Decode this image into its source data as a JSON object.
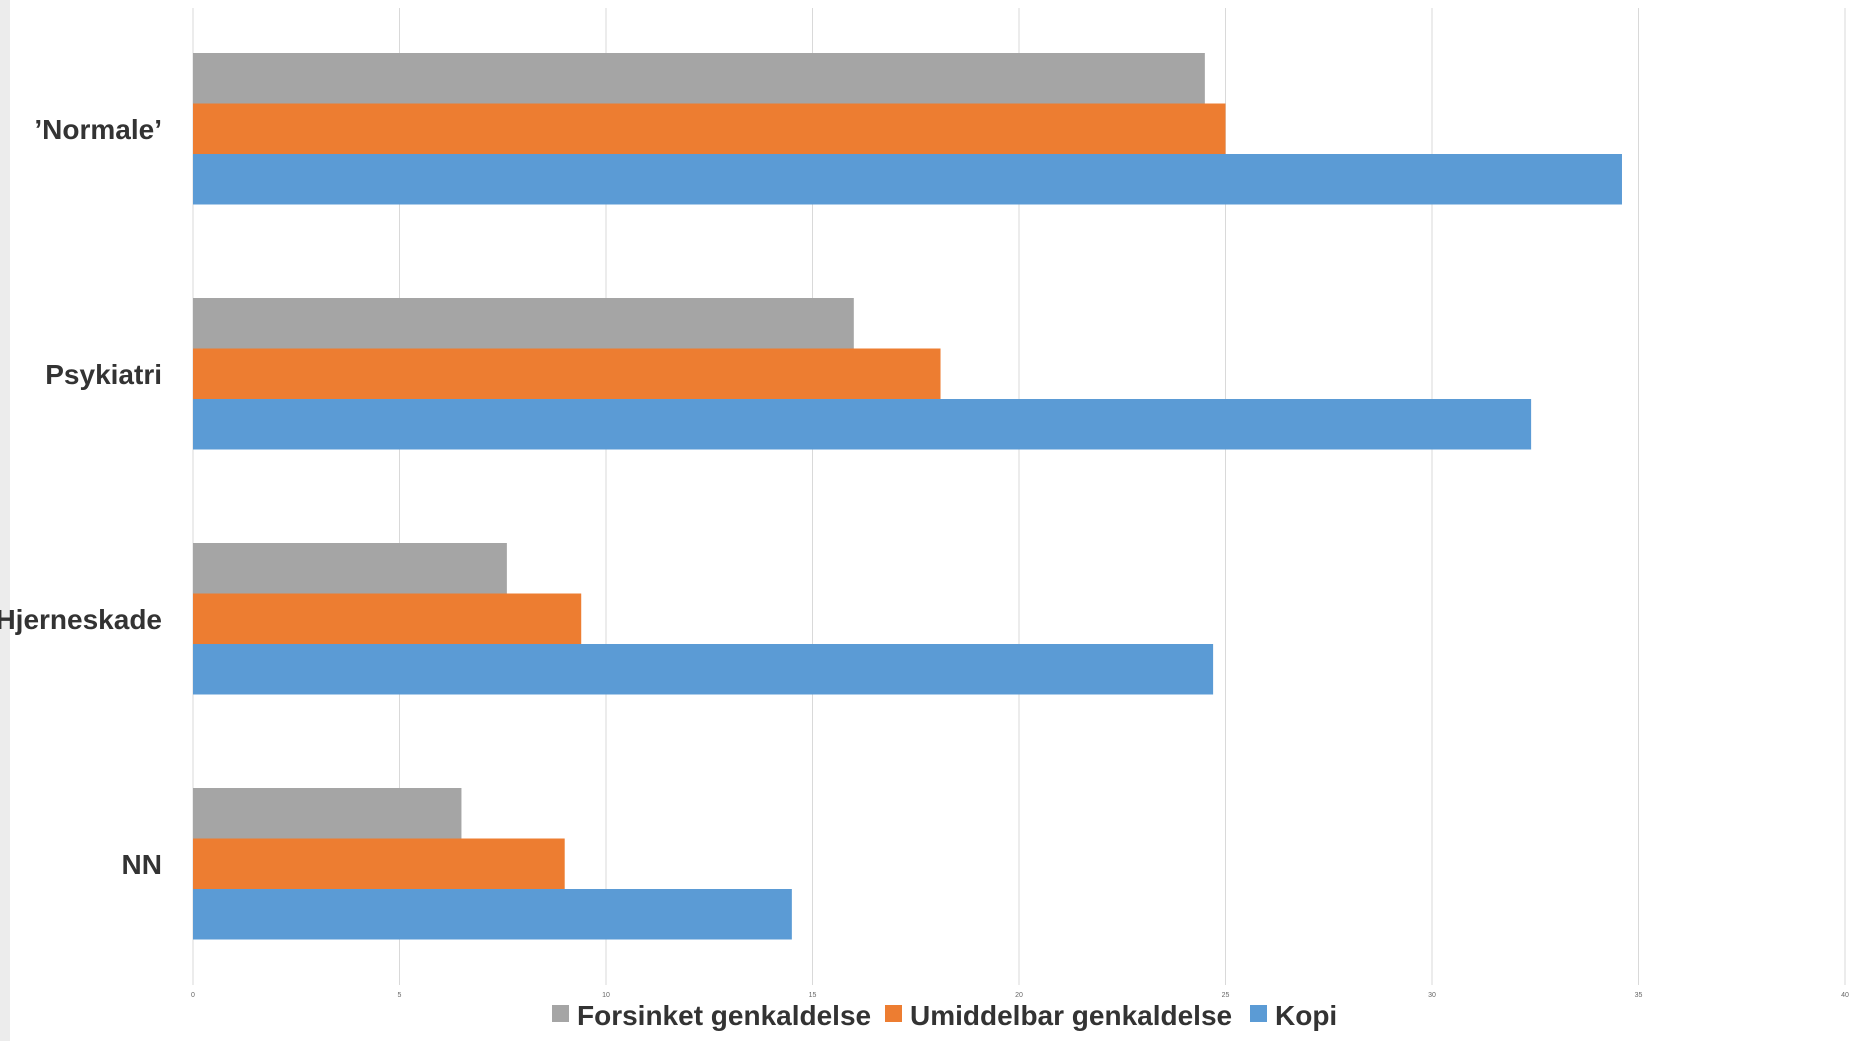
{
  "chart_data": {
    "type": "bar",
    "orientation": "horizontal",
    "categories": [
      "’Normale’",
      "Psykiatri",
      "Hjerneskade",
      "NN"
    ],
    "series": [
      {
        "name": "Forsinket genkaldelse",
        "color": "#a5a5a5",
        "values": [
          24.5,
          16,
          7.6,
          6.5
        ]
      },
      {
        "name": "Umiddelbar genkaldelse",
        "color": "#ed7d31",
        "values": [
          25,
          18.1,
          9.4,
          9
        ]
      },
      {
        "name": "Kopi",
        "color": "#5b9bd5",
        "values": [
          34.6,
          32.4,
          24.7,
          14.5
        ]
      }
    ],
    "xlim": [
      0,
      40
    ],
    "xticks": [
      "0",
      "5",
      "10",
      "15",
      "20",
      "25",
      "30",
      "35",
      "40"
    ],
    "title": "",
    "xlabel": "",
    "ylabel": "",
    "grid": true,
    "legend_position": "bottom"
  }
}
